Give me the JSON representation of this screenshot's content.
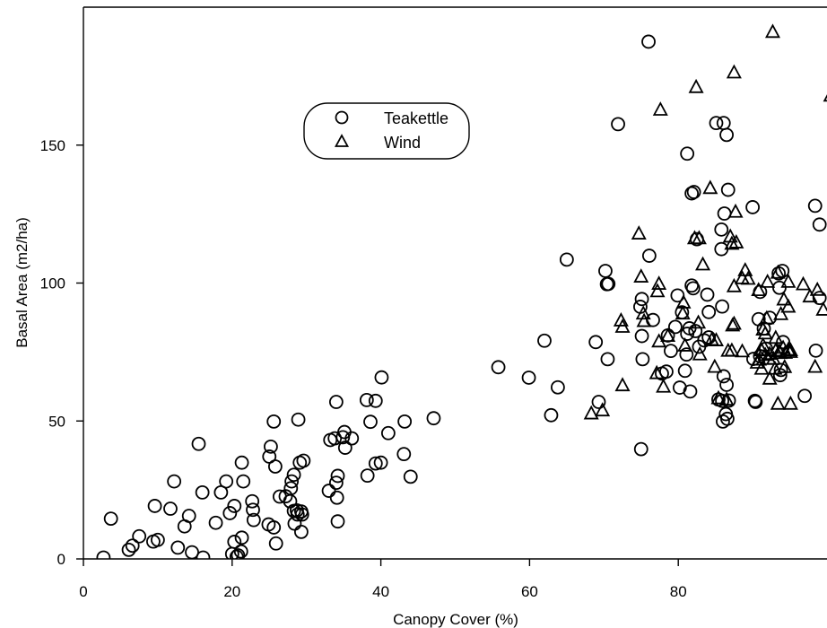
{
  "chart_data": {
    "type": "scatter",
    "title": "",
    "xlabel": "Canopy Cover (%)",
    "ylabel": "Basal Area (m2/ha)",
    "xlim": [
      0,
      100
    ],
    "ylim": [
      0,
      200
    ],
    "xticks": [
      0,
      20,
      40,
      60,
      80
    ],
    "yticks": [
      0,
      50,
      100,
      150
    ],
    "grid": false,
    "legend_position": "top-center",
    "series": [
      {
        "name": "Teakettle",
        "marker": "circle",
        "points": [
          [
            2.7,
            0.5
          ],
          [
            3.7,
            14.6
          ],
          [
            6.1,
            3.3
          ],
          [
            6.6,
            4.8
          ],
          [
            7.5,
            8.2
          ],
          [
            9.4,
            6.3
          ],
          [
            9.6,
            19.2
          ],
          [
            10.0,
            6.9
          ],
          [
            11.7,
            18.2
          ],
          [
            12.2,
            28.1
          ],
          [
            12.7,
            4.1
          ],
          [
            13.6,
            11.8
          ],
          [
            14.2,
            15.6
          ],
          [
            14.6,
            2.4
          ],
          [
            15.5,
            41.7
          ],
          [
            16.0,
            24.1
          ],
          [
            16.1,
            0.5
          ],
          [
            17.8,
            13.1
          ],
          [
            18.5,
            24.1
          ],
          [
            19.2,
            28.1
          ],
          [
            19.7,
            16.6
          ],
          [
            20.0,
            1.8
          ],
          [
            20.3,
            6.2
          ],
          [
            20.3,
            19.2
          ],
          [
            20.6,
            0.8
          ],
          [
            20.8,
            1.3
          ],
          [
            21.2,
            2.7
          ],
          [
            21.3,
            7.7
          ],
          [
            21.3,
            34.9
          ],
          [
            21.5,
            28.1
          ],
          [
            22.7,
            20.9
          ],
          [
            22.8,
            17.8
          ],
          [
            22.9,
            14.1
          ],
          [
            24.9,
            12.5
          ],
          [
            25.0,
            37.1
          ],
          [
            25.2,
            40.7
          ],
          [
            25.6,
            49.8
          ],
          [
            25.6,
            11.4
          ],
          [
            25.8,
            33.5
          ],
          [
            25.9,
            5.6
          ],
          [
            26.4,
            22.6
          ],
          [
            27.2,
            22.7
          ],
          [
            27.8,
            20.9
          ],
          [
            27.9,
            25.6
          ],
          [
            28.0,
            28.1
          ],
          [
            28.3,
            30.5
          ],
          [
            28.3,
            17.4
          ],
          [
            28.4,
            12.8
          ],
          [
            28.7,
            17.6
          ],
          [
            28.8,
            16.1
          ],
          [
            28.9,
            50.5
          ],
          [
            29.1,
            34.9
          ],
          [
            29.3,
            17.2
          ],
          [
            29.3,
            9.8
          ],
          [
            29.4,
            16.1
          ],
          [
            29.6,
            35.6
          ],
          [
            33.0,
            24.7
          ],
          [
            33.2,
            43.1
          ],
          [
            33.8,
            43.7
          ],
          [
            34.0,
            56.9
          ],
          [
            34.0,
            27.6
          ],
          [
            34.1,
            22.2
          ],
          [
            34.2,
            13.6
          ],
          [
            34.2,
            30.1
          ],
          [
            34.9,
            44.1
          ],
          [
            35.1,
            46.0
          ],
          [
            35.2,
            40.3
          ],
          [
            36.1,
            43.7
          ],
          [
            38.1,
            57.6
          ],
          [
            38.2,
            30.2
          ],
          [
            38.6,
            49.7
          ],
          [
            39.3,
            34.6
          ],
          [
            39.3,
            57.3
          ],
          [
            40.0,
            34.9
          ],
          [
            40.1,
            65.8
          ],
          [
            41.0,
            45.6
          ],
          [
            43.1,
            38.0
          ],
          [
            43.2,
            49.8
          ],
          [
            44.0,
            29.8
          ],
          [
            47.1,
            51.0
          ],
          [
            55.8,
            69.5
          ],
          [
            59.9,
            65.7
          ],
          [
            62.0,
            79.1
          ],
          [
            62.9,
            52.1
          ],
          [
            63.8,
            62.2
          ],
          [
            65.0,
            108.5
          ],
          [
            68.9,
            78.6
          ],
          [
            69.3,
            56.9
          ],
          [
            70.2,
            104.4
          ],
          [
            70.4,
            99.6
          ],
          [
            70.5,
            72.4
          ],
          [
            70.6,
            99.7
          ],
          [
            71.9,
            157.6
          ],
          [
            74.9,
            91.4
          ],
          [
            75.0,
            39.8
          ],
          [
            75.1,
            80.8
          ],
          [
            75.1,
            94.2
          ],
          [
            75.2,
            72.4
          ],
          [
            76.0,
            187.5
          ],
          [
            76.1,
            109.9
          ],
          [
            76.6,
            86.6
          ],
          [
            77.8,
            67.2
          ],
          [
            78.4,
            67.9
          ],
          [
            78.6,
            81.0
          ],
          [
            79.0,
            75.4
          ],
          [
            79.6,
            84.1
          ],
          [
            79.9,
            95.5
          ],
          [
            80.2,
            62.1
          ],
          [
            80.5,
            89.4
          ],
          [
            80.9,
            68.2
          ],
          [
            81.1,
            74.1
          ],
          [
            81.2,
            81.6
          ],
          [
            81.2,
            146.9
          ],
          [
            81.5,
            83.6
          ],
          [
            81.6,
            60.7
          ],
          [
            81.8,
            99.1
          ],
          [
            81.8,
            132.5
          ],
          [
            82.0,
            98.1
          ],
          [
            82.1,
            133.0
          ],
          [
            82.3,
            82.6
          ],
          [
            82.5,
            115.9
          ],
          [
            82.8,
            76.9
          ],
          [
            83.5,
            79.2
          ],
          [
            83.9,
            95.8
          ],
          [
            84.1,
            89.5
          ],
          [
            84.1,
            80.3
          ],
          [
            85.1,
            158.0
          ],
          [
            85.4,
            57.8
          ],
          [
            85.8,
            119.4
          ],
          [
            85.8,
            112.3
          ],
          [
            85.9,
            91.5
          ],
          [
            85.9,
            57.3
          ],
          [
            86.0,
            49.8
          ],
          [
            86.1,
            66.2
          ],
          [
            86.1,
            158.0
          ],
          [
            86.2,
            125.2
          ],
          [
            86.4,
            52.5
          ],
          [
            86.5,
            153.7
          ],
          [
            86.5,
            63.1
          ],
          [
            86.6,
            50.8
          ],
          [
            86.7,
            133.8
          ],
          [
            86.8,
            57.4
          ],
          [
            90.0,
            127.5
          ],
          [
            90.1,
            72.5
          ],
          [
            90.3,
            57.3
          ],
          [
            90.4,
            56.9
          ],
          [
            90.8,
            86.9
          ],
          [
            91.0,
            96.8
          ],
          [
            91.0,
            73.5
          ],
          [
            91.5,
            83.5
          ],
          [
            91.8,
            76.2
          ],
          [
            92.3,
            87.4
          ],
          [
            93.5,
            103.5
          ],
          [
            93.6,
            98.3
          ],
          [
            93.7,
            66.6
          ],
          [
            93.8,
            68.5
          ],
          [
            94.0,
            104.4
          ],
          [
            94.1,
            78.6
          ],
          [
            97.0,
            59.1
          ],
          [
            98.4,
            128.0
          ],
          [
            98.5,
            75.5
          ],
          [
            99.0,
            121.2
          ],
          [
            99.0,
            94.6
          ]
        ]
      },
      {
        "name": "Wind",
        "marker": "triangle",
        "points": [
          [
            68.3,
            52.5
          ],
          [
            69.8,
            53.6
          ],
          [
            72.3,
            86.2
          ],
          [
            72.5,
            62.7
          ],
          [
            72.5,
            83.9
          ],
          [
            74.7,
            117.7
          ],
          [
            75.0,
            102.1
          ],
          [
            75.3,
            88.7
          ],
          [
            75.4,
            86.0
          ],
          [
            77.1,
            67.1
          ],
          [
            77.2,
            96.8
          ],
          [
            77.4,
            78.6
          ],
          [
            77.4,
            99.5
          ],
          [
            77.6,
            162.6
          ],
          [
            78.0,
            62.2
          ],
          [
            78.6,
            80.6
          ],
          [
            80.6,
            88.7
          ],
          [
            80.7,
            92.7
          ],
          [
            80.9,
            77.1
          ],
          [
            82.2,
            116.0
          ],
          [
            82.4,
            170.8
          ],
          [
            82.7,
            85.4
          ],
          [
            82.8,
            116.0
          ],
          [
            82.9,
            73.9
          ],
          [
            83.3,
            106.5
          ],
          [
            84.3,
            134.2
          ],
          [
            84.5,
            79.2
          ],
          [
            84.9,
            69.4
          ],
          [
            85.1,
            79.0
          ],
          [
            85.4,
            58.0
          ],
          [
            86.5,
            57.5
          ],
          [
            86.7,
            75.2
          ],
          [
            87.0,
            116.6
          ],
          [
            87.2,
            114.0
          ],
          [
            87.2,
            75.3
          ],
          [
            87.3,
            84.4
          ],
          [
            87.5,
            176.1
          ],
          [
            87.5,
            98.6
          ],
          [
            87.5,
            85.0
          ],
          [
            87.7,
            125.6
          ],
          [
            87.8,
            114.5
          ],
          [
            88.6,
            101.5
          ],
          [
            88.6,
            75.0
          ],
          [
            89.0,
            104.4
          ],
          [
            89.4,
            101.3
          ],
          [
            90.6,
            70.9
          ],
          [
            90.8,
            97.2
          ],
          [
            90.9,
            72.0
          ],
          [
            91.2,
            68.7
          ],
          [
            91.2,
            75.4
          ],
          [
            91.4,
            77.2
          ],
          [
            91.4,
            82.9
          ],
          [
            91.7,
            81.5
          ],
          [
            91.7,
            73.7
          ],
          [
            91.9,
            87.0
          ],
          [
            92.0,
            100.2
          ],
          [
            92.2,
            72.3
          ],
          [
            92.3,
            65.1
          ],
          [
            92.3,
            74.1
          ],
          [
            92.7,
            190.8
          ],
          [
            92.8,
            72.3
          ],
          [
            93.0,
            68.7
          ],
          [
            93.1,
            75.3
          ],
          [
            93.1,
            79.9
          ],
          [
            93.4,
            103.5
          ],
          [
            93.4,
            56.0
          ],
          [
            93.6,
            75.0
          ],
          [
            93.7,
            74.4
          ],
          [
            93.8,
            88.5
          ],
          [
            94.1,
            76.3
          ],
          [
            94.2,
            93.8
          ],
          [
            94.3,
            69.3
          ],
          [
            94.4,
            74.5
          ],
          [
            94.8,
            91.2
          ],
          [
            94.8,
            100.2
          ],
          [
            94.8,
            75.6
          ],
          [
            95.1,
            75.4
          ],
          [
            95.1,
            56.0
          ],
          [
            95.1,
            74.8
          ],
          [
            96.8,
            99.3
          ],
          [
            97.7,
            94.9
          ],
          [
            98.4,
            69.4
          ],
          [
            98.7,
            97.3
          ],
          [
            99.5,
            90.1
          ],
          [
            100.5,
            167.7
          ]
        ]
      }
    ]
  }
}
